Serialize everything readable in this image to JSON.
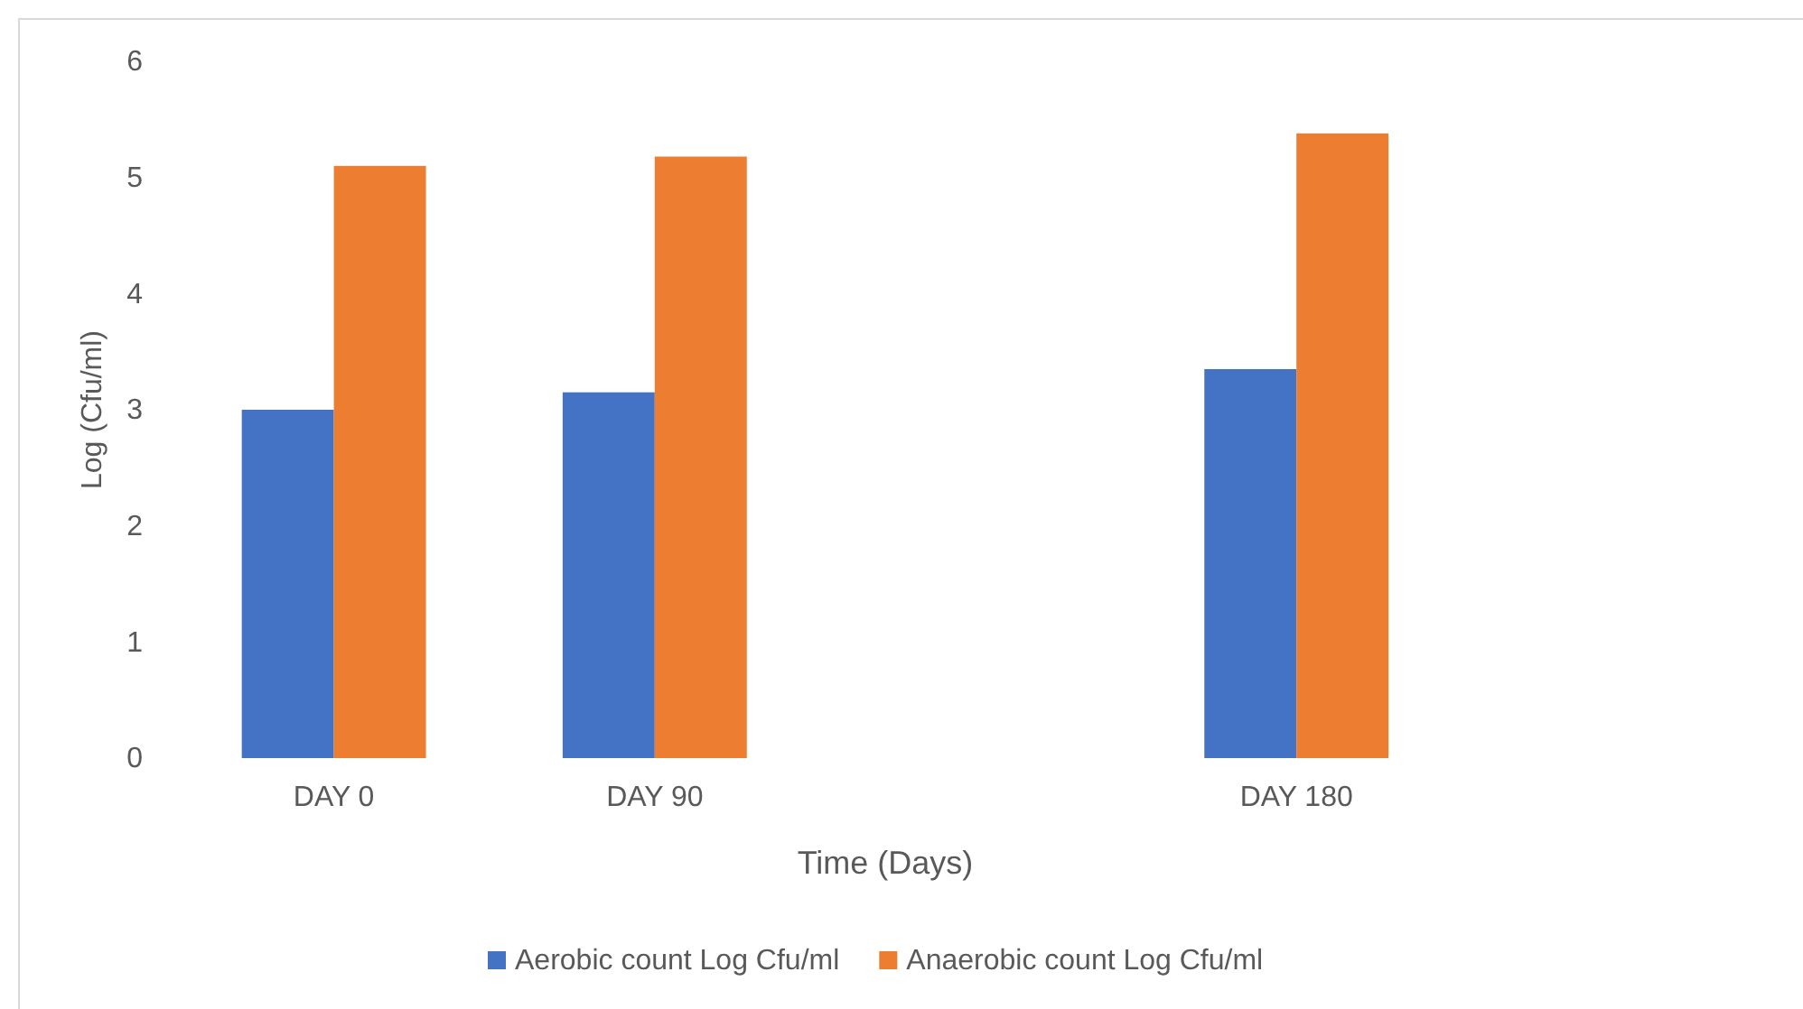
{
  "chart_data": {
    "type": "bar",
    "xlabel": "Time (Days)",
    "ylabel": "Log (Cfu/ml)",
    "categories": [
      "DAY 0",
      "DAY 90",
      null,
      "DAY 180",
      null
    ],
    "series": [
      {
        "name": "Aerobic count Log Cfu/ml",
        "color": "#4472c4",
        "values": [
          3.0,
          3.15,
          null,
          3.35,
          null
        ]
      },
      {
        "name": "Anaerobic count Log Cfu/ml",
        "color": "#ed7d31",
        "values": [
          5.1,
          5.18,
          null,
          5.38,
          null
        ]
      }
    ],
    "ylim": [
      0,
      6
    ],
    "yticks": [
      0,
      1,
      2,
      3,
      4,
      5,
      6
    ],
    "grid": false,
    "legend": "bottom"
  }
}
